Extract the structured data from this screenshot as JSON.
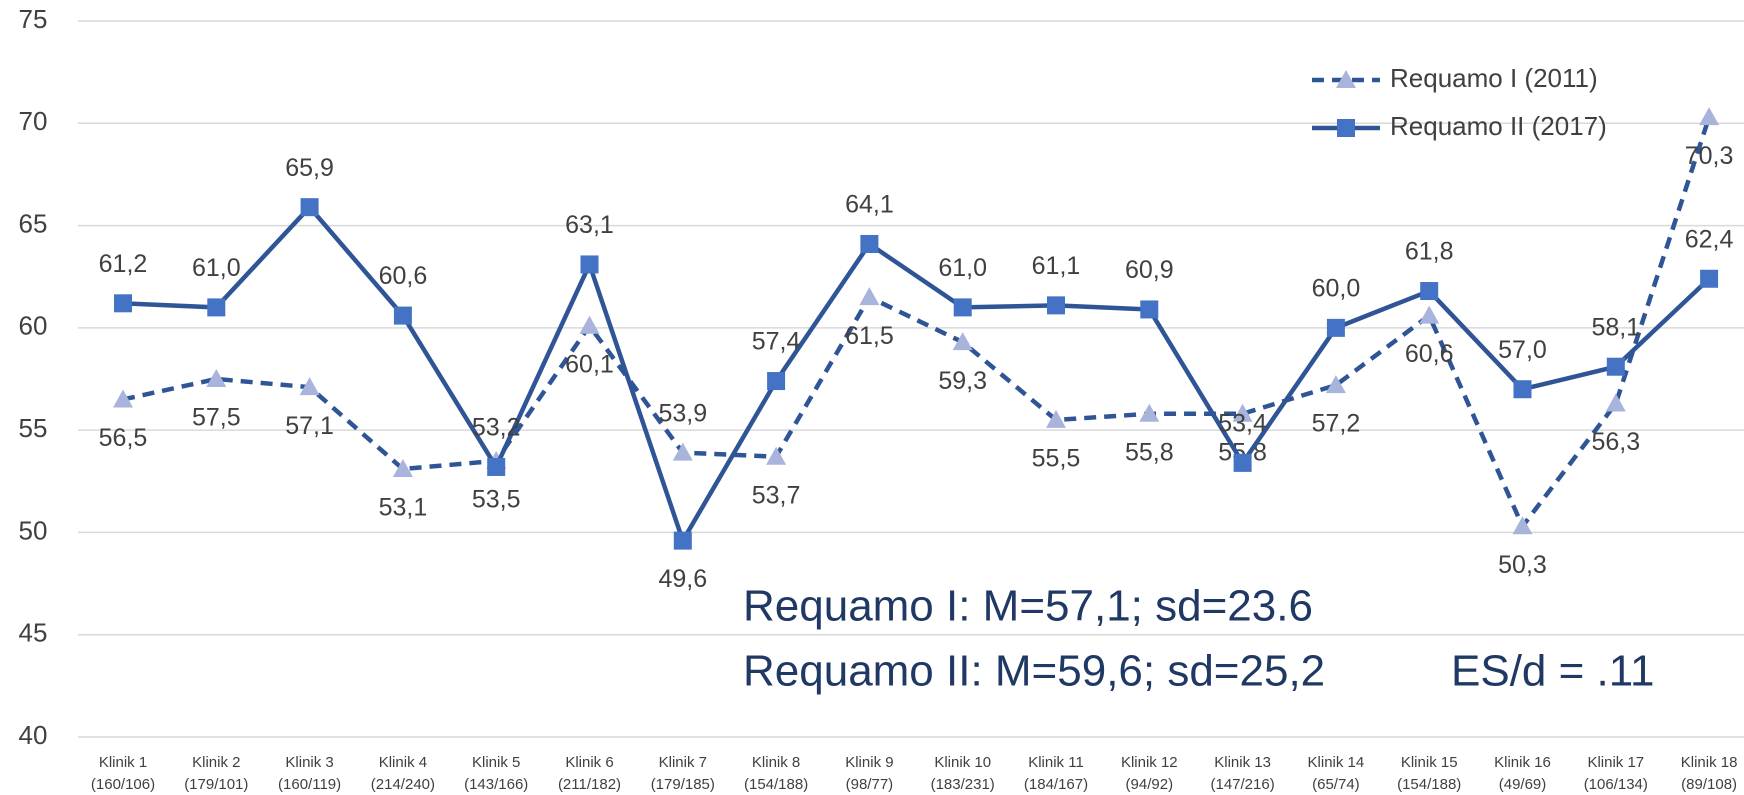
{
  "chart_data": {
    "type": "line",
    "categories": [
      [
        "Klinik 1",
        "(160/106)"
      ],
      [
        "Klinik 2",
        "(179/101)"
      ],
      [
        "Klinik 3",
        "(160/119)"
      ],
      [
        "Klinik 4",
        "(214/240)"
      ],
      [
        "Klinik 5",
        "(143/166)"
      ],
      [
        "Klinik 6",
        "(211/182)"
      ],
      [
        "Klinik 7",
        "(179/185)"
      ],
      [
        "Klinik 8",
        "(154/188)"
      ],
      [
        "Klinik 9",
        "(98/77)"
      ],
      [
        "Klinik 10",
        "(183/231)"
      ],
      [
        "Klinik 11",
        "(184/167)"
      ],
      [
        "Klinik 12",
        "(94/92)"
      ],
      [
        "Klinik 13",
        "(147/216)"
      ],
      [
        "Klinik 14",
        "(65/74)"
      ],
      [
        "Klinik 15",
        "(154/188)"
      ],
      [
        "Klinik 16",
        "(49/69)"
      ],
      [
        "Klinik 17",
        "(106/134)"
      ],
      [
        "Klinik 18",
        "(89/108)"
      ]
    ],
    "series": [
      {
        "name": "Requamo I (2011)",
        "color": "#2f5597",
        "marker_color": "#a9b4dd",
        "marker": "triangle",
        "dashed": true,
        "values": [
          56.5,
          57.5,
          57.1,
          53.1,
          53.5,
          60.1,
          53.9,
          53.7,
          61.5,
          59.3,
          55.5,
          55.8,
          55.8,
          57.2,
          60.6,
          50.3,
          56.3,
          70.3
        ],
        "value_labels": [
          "56,5",
          "57,5",
          "57,1",
          "53,1",
          "53,5",
          "60,1",
          "53,9",
          "53,7",
          "61,5",
          "59,3",
          "55,5",
          "55,8",
          "55,8",
          "57,2",
          "60,6",
          "50,3",
          "56,3",
          "70,3"
        ]
      },
      {
        "name": "Requamo II (2017)",
        "color": "#2f5597",
        "marker_color": "#4472c4",
        "marker": "square",
        "dashed": false,
        "values": [
          61.2,
          61.0,
          65.9,
          60.6,
          53.2,
          63.1,
          49.6,
          57.4,
          64.1,
          61.0,
          61.1,
          60.9,
          53.4,
          60.0,
          61.8,
          57.0,
          58.1,
          62.4
        ],
        "value_labels": [
          "61,2",
          "61,0",
          "65,9",
          "60,6",
          "53,2",
          "63,1",
          "49,6",
          "57,4",
          "64,1",
          "61,0",
          "61,1",
          "60,9",
          "53,4",
          "60,0",
          "61,8",
          "57,0",
          "58,1",
          "62,4"
        ]
      }
    ],
    "ylim": [
      40,
      75
    ],
    "yticks": [
      40,
      45,
      50,
      55,
      60,
      65,
      70,
      75
    ],
    "grid": true,
    "legend": "upper right",
    "annotations": [
      "Requamo I:  M=57,1; sd=23.6",
      "Requamo II: M=59,6; sd=25,2",
      "ES/d = .11"
    ]
  }
}
